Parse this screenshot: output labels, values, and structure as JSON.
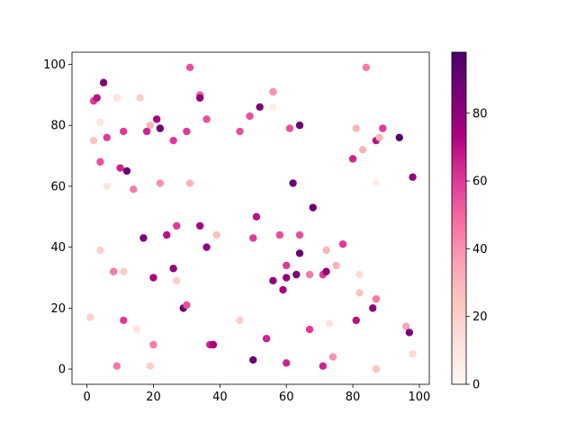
{
  "chart_data": {
    "type": "scatter",
    "x": [
      2,
      3,
      5,
      4,
      2,
      6,
      4,
      9,
      16,
      11,
      10,
      12,
      6,
      14,
      19,
      18,
      21,
      22,
      26,
      30,
      31,
      34,
      34,
      36,
      22,
      31,
      46,
      49,
      52,
      56,
      56,
      61,
      64,
      62,
      68,
      81,
      83,
      80,
      87,
      88,
      89,
      84,
      87,
      94,
      98,
      17,
      27,
      24,
      34,
      36,
      39,
      51,
      50,
      58,
      64,
      77,
      64,
      72,
      60,
      67,
      63,
      71,
      72,
      75,
      56,
      59,
      60,
      4,
      8,
      11,
      20,
      26,
      27,
      29,
      30,
      1,
      11,
      15,
      20,
      19,
      9,
      37,
      38,
      46,
      50,
      54,
      60,
      67,
      71,
      73,
      74,
      82,
      82,
      87,
      86,
      81,
      96,
      97,
      98,
      87
    ],
    "values": [
      88,
      89,
      94,
      81,
      75,
      76,
      68,
      89,
      89,
      78,
      66,
      65,
      60,
      59,
      80,
      78,
      82,
      79,
      75,
      78,
      99,
      90,
      89,
      82,
      61,
      61,
      78,
      83,
      86,
      91,
      86,
      79,
      80,
      61,
      53,
      79,
      72,
      69,
      75,
      76,
      79,
      99,
      61,
      76,
      63,
      43,
      47,
      44,
      47,
      40,
      44,
      50,
      43,
      44,
      44,
      41,
      38,
      39,
      34,
      31,
      31,
      31,
      32,
      34,
      29,
      26,
      30,
      39,
      32,
      32,
      30,
      33,
      29,
      20,
      21,
      17,
      16,
      13,
      8,
      1,
      1,
      8,
      8,
      16,
      3,
      10,
      2,
      13,
      1,
      15,
      4,
      31,
      25,
      23,
      20,
      16,
      14,
      12,
      5,
      0
    ],
    "c": [
      60,
      70,
      85,
      10,
      25,
      60,
      55,
      10,
      20,
      60,
      65,
      90,
      10,
      45,
      30,
      65,
      75,
      90,
      60,
      60,
      55,
      50,
      80,
      55,
      40,
      30,
      55,
      55,
      85,
      40,
      5,
      55,
      90,
      90,
      90,
      30,
      30,
      65,
      70,
      30,
      60,
      45,
      5,
      95,
      80,
      85,
      60,
      70,
      75,
      80,
      25,
      70,
      60,
      55,
      55,
      60,
      90,
      30,
      60,
      45,
      85,
      60,
      80,
      30,
      80,
      75,
      80,
      20,
      45,
      20,
      75,
      80,
      20,
      90,
      55,
      20,
      60,
      10,
      45,
      20,
      45,
      65,
      75,
      20,
      90,
      65,
      65,
      60,
      65,
      10,
      40,
      15,
      25,
      45,
      80,
      70,
      35,
      85,
      15,
      25
    ],
    "xlim": [
      -4.5,
      103
    ],
    "ylim": [
      -5,
      104
    ],
    "xticks": [
      0,
      20,
      40,
      60,
      80,
      100
    ],
    "yticks": [
      0,
      20,
      40,
      60,
      80,
      100
    ],
    "colormap": "RdPu",
    "clim": [
      0,
      98
    ],
    "cticks": [
      0,
      20,
      40,
      60,
      80
    ]
  }
}
